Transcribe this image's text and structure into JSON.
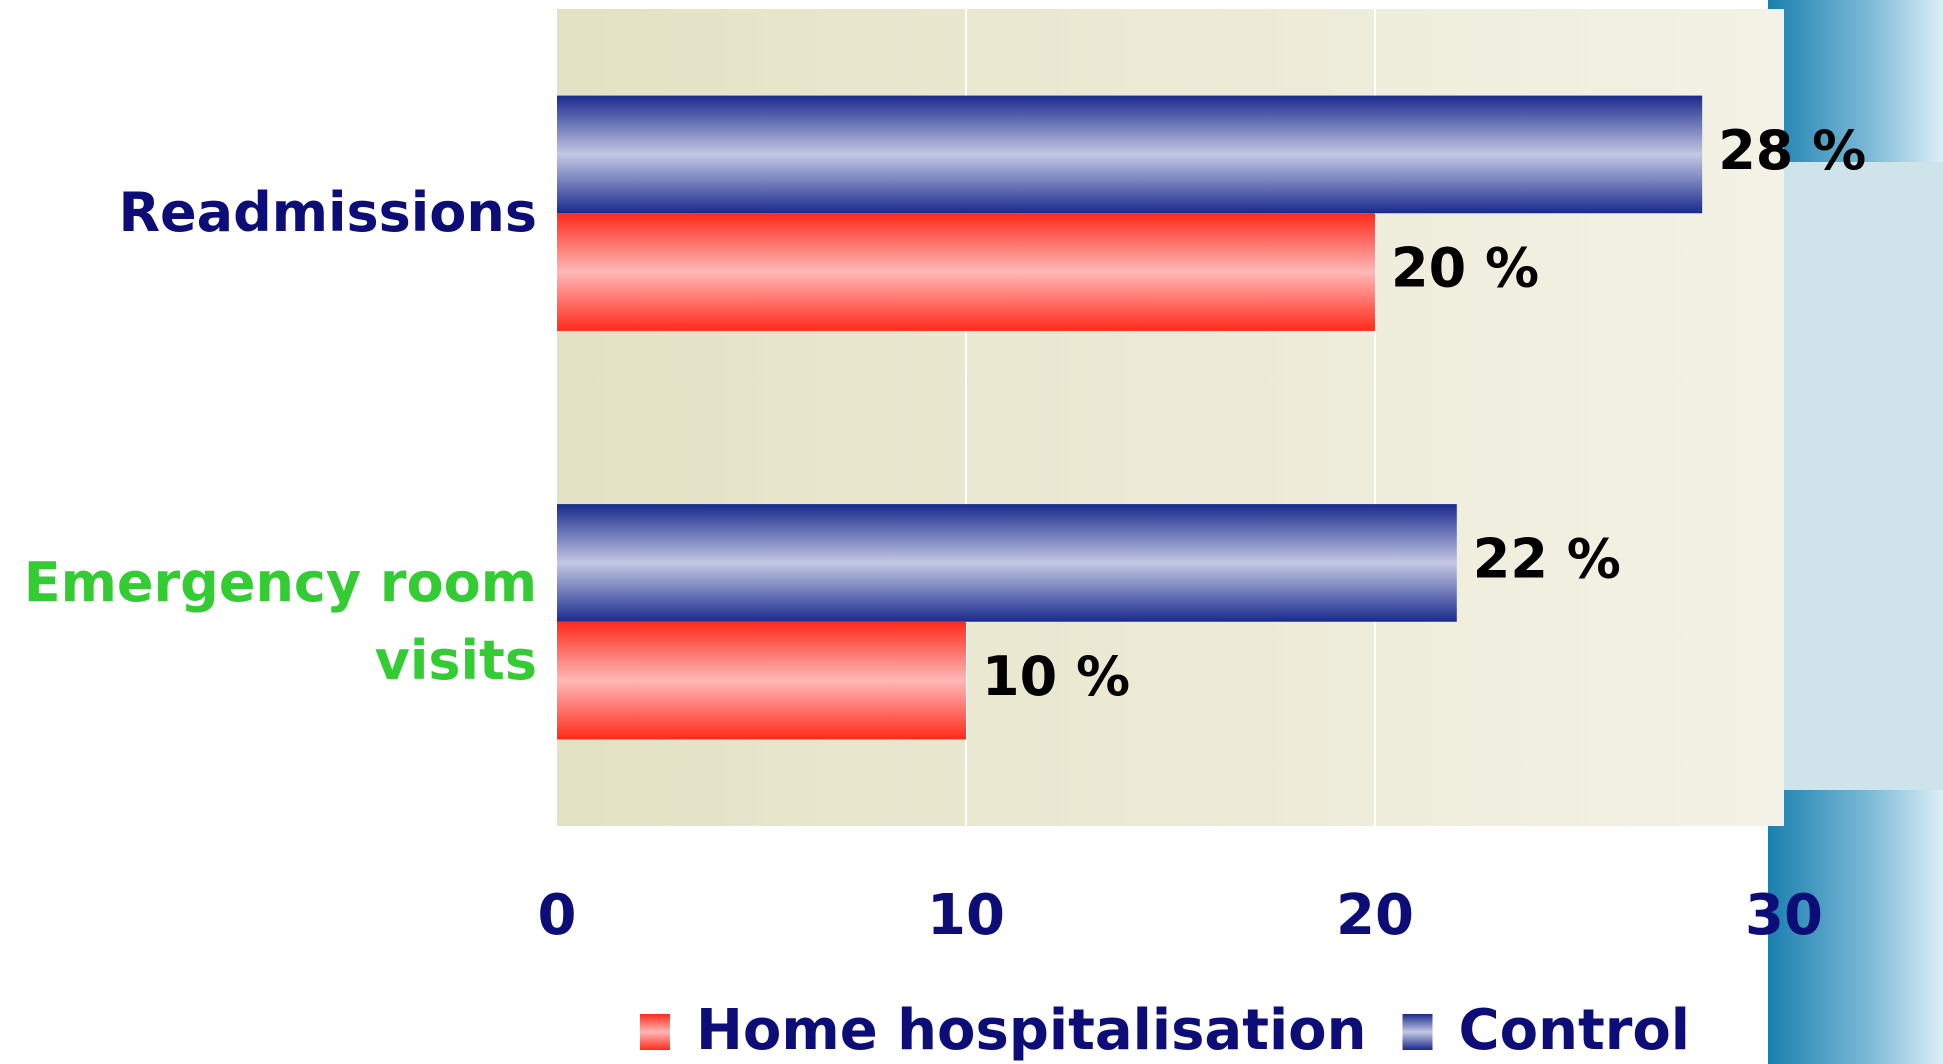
{
  "chart_data": {
    "type": "hbar",
    "categories": [
      "Readmissions",
      "Emergency room visits"
    ],
    "category_colors": [
      "#0d0d78",
      "#33cc33"
    ],
    "series": [
      {
        "name": "Home hospitalisation",
        "color": "#ff2a1a",
        "values": [
          20,
          10
        ],
        "value_labels": [
          "20 %",
          "10 %"
        ]
      },
      {
        "name": "Control",
        "color": "#1a2a8c",
        "values": [
          28,
          22
        ],
        "value_labels": [
          "28 %",
          "22 %"
        ]
      }
    ],
    "xlim": [
      0,
      30
    ],
    "xticks": [
      0,
      10,
      20,
      30
    ],
    "grid": true
  }
}
